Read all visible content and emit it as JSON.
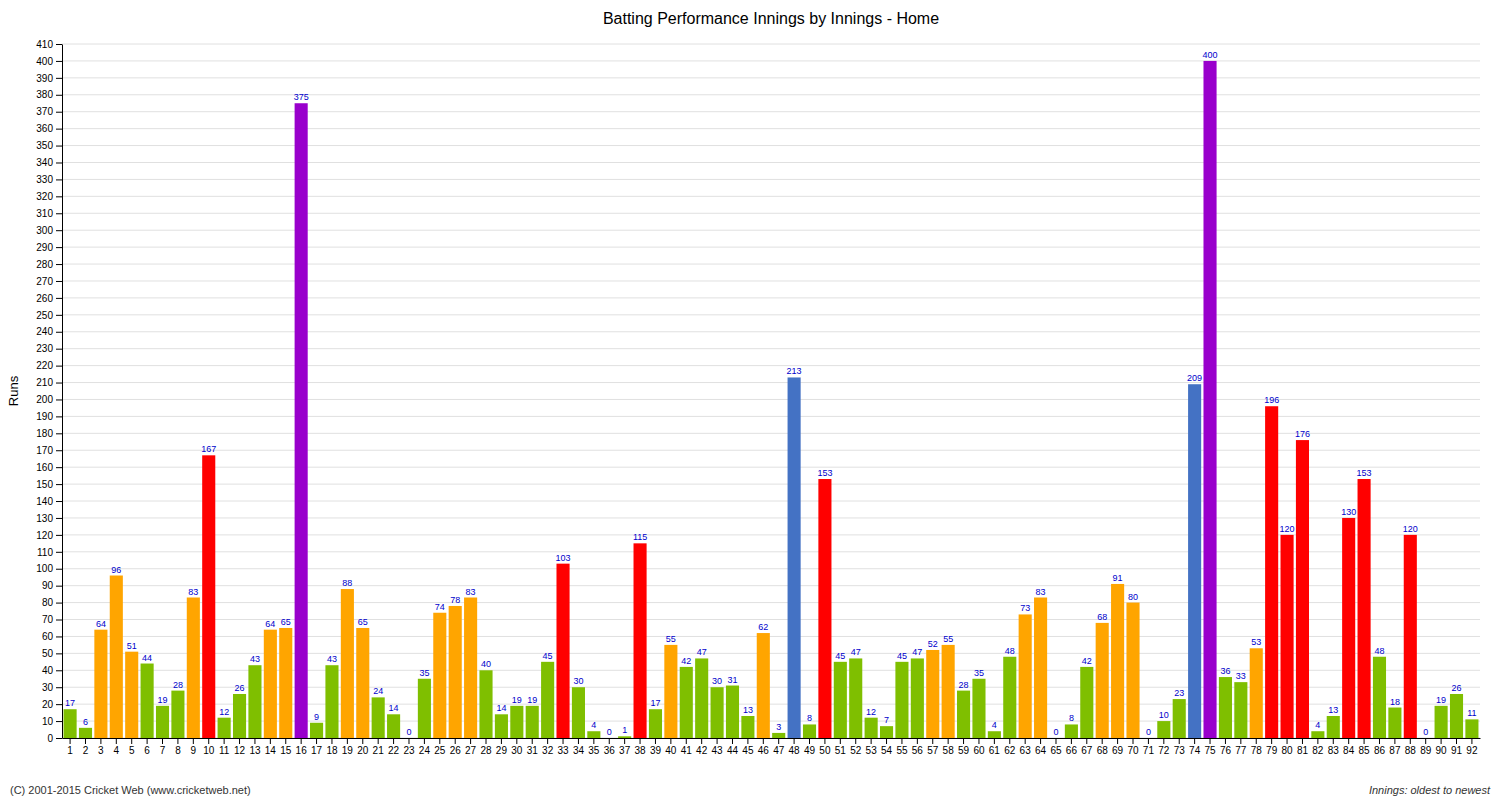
{
  "chart_data": {
    "type": "bar",
    "title": "Batting Performance Innings by Innings - Home",
    "ylabel": "Runs",
    "categories": [
      "1",
      "2",
      "3",
      "4",
      "5",
      "6",
      "7",
      "8",
      "9",
      "10",
      "11",
      "12",
      "13",
      "14",
      "15",
      "16",
      "17",
      "18",
      "19",
      "20",
      "21",
      "22",
      "23",
      "24",
      "25",
      "26",
      "27",
      "28",
      "29",
      "30",
      "31",
      "32",
      "33",
      "34",
      "35",
      "36",
      "37",
      "38",
      "39",
      "40",
      "41",
      "42",
      "43",
      "44",
      "45",
      "46",
      "47",
      "48",
      "49",
      "50",
      "51",
      "52",
      "53",
      "54",
      "55",
      "56",
      "57",
      "58",
      "59",
      "60",
      "61",
      "62",
      "63",
      "64",
      "65",
      "66",
      "67",
      "68",
      "69",
      "70",
      "71",
      "72",
      "73",
      "74",
      "75",
      "76",
      "77",
      "78",
      "79",
      "80",
      "81",
      "82",
      "83",
      "84",
      "85",
      "86",
      "87",
      "88",
      "89",
      "90",
      "91",
      "92"
    ],
    "values": [
      17,
      6,
      64,
      96,
      51,
      44,
      19,
      28,
      83,
      167,
      12,
      26,
      43,
      64,
      65,
      375,
      9,
      43,
      88,
      65,
      24,
      14,
      0,
      35,
      74,
      78,
      83,
      40,
      14,
      19,
      19,
      45,
      103,
      30,
      4,
      0,
      1,
      115,
      17,
      55,
      42,
      47,
      30,
      31,
      13,
      62,
      3,
      213,
      8,
      153,
      45,
      47,
      12,
      7,
      45,
      47,
      52,
      55,
      28,
      35,
      4,
      48,
      73,
      83,
      0,
      8,
      42,
      68,
      91,
      80,
      0,
      10,
      23,
      209,
      400,
      36,
      33,
      53,
      196,
      120,
      176,
      4,
      13,
      130,
      153,
      48,
      18,
      120,
      0,
      19,
      26,
      11
    ],
    "colors": [
      "#7FBF00",
      "#7FBF00",
      "#FFA500",
      "#FFA500",
      "#FFA500",
      "#7FBF00",
      "#7FBF00",
      "#7FBF00",
      "#FFA500",
      "#FF0000",
      "#7FBF00",
      "#7FBF00",
      "#7FBF00",
      "#FFA500",
      "#FFA500",
      "#9900CC",
      "#7FBF00",
      "#7FBF00",
      "#FFA500",
      "#FFA500",
      "#7FBF00",
      "#7FBF00",
      "#7FBF00",
      "#7FBF00",
      "#FFA500",
      "#FFA500",
      "#FFA500",
      "#7FBF00",
      "#7FBF00",
      "#7FBF00",
      "#7FBF00",
      "#7FBF00",
      "#FF0000",
      "#7FBF00",
      "#7FBF00",
      "#7FBF00",
      "#7FBF00",
      "#FF0000",
      "#7FBF00",
      "#FFA500",
      "#7FBF00",
      "#7FBF00",
      "#7FBF00",
      "#7FBF00",
      "#7FBF00",
      "#FFA500",
      "#7FBF00",
      "#4472C4",
      "#7FBF00",
      "#FF0000",
      "#7FBF00",
      "#7FBF00",
      "#7FBF00",
      "#7FBF00",
      "#7FBF00",
      "#7FBF00",
      "#FFA500",
      "#FFA500",
      "#7FBF00",
      "#7FBF00",
      "#7FBF00",
      "#7FBF00",
      "#FFA500",
      "#FFA500",
      "#7FBF00",
      "#7FBF00",
      "#7FBF00",
      "#FFA500",
      "#FFA500",
      "#FFA500",
      "#7FBF00",
      "#7FBF00",
      "#7FBF00",
      "#4472C4",
      "#9900CC",
      "#7FBF00",
      "#7FBF00",
      "#FFA500",
      "#FF0000",
      "#FF0000",
      "#FF0000",
      "#7FBF00",
      "#7FBF00",
      "#FF0000",
      "#FF0000",
      "#7FBF00",
      "#7FBF00",
      "#FF0000",
      "#7FBF00",
      "#7FBF00",
      "#7FBF00",
      "#7FBF00"
    ],
    "ylim": [
      0,
      410
    ],
    "yticks": [
      0,
      10,
      20,
      30,
      40,
      50,
      60,
      70,
      80,
      90,
      100,
      110,
      120,
      130,
      140,
      150,
      160,
      170,
      180,
      190,
      200,
      210,
      220,
      230,
      240,
      250,
      260,
      270,
      280,
      290,
      300,
      310,
      320,
      330,
      340,
      350,
      360,
      370,
      380,
      390,
      400,
      410
    ],
    "grid": true,
    "data_labels": true,
    "annotations": [
      "(C) 2001-2015 Cricket Web (www.cricketweb.net)",
      "Innings: oldest to newest"
    ]
  }
}
